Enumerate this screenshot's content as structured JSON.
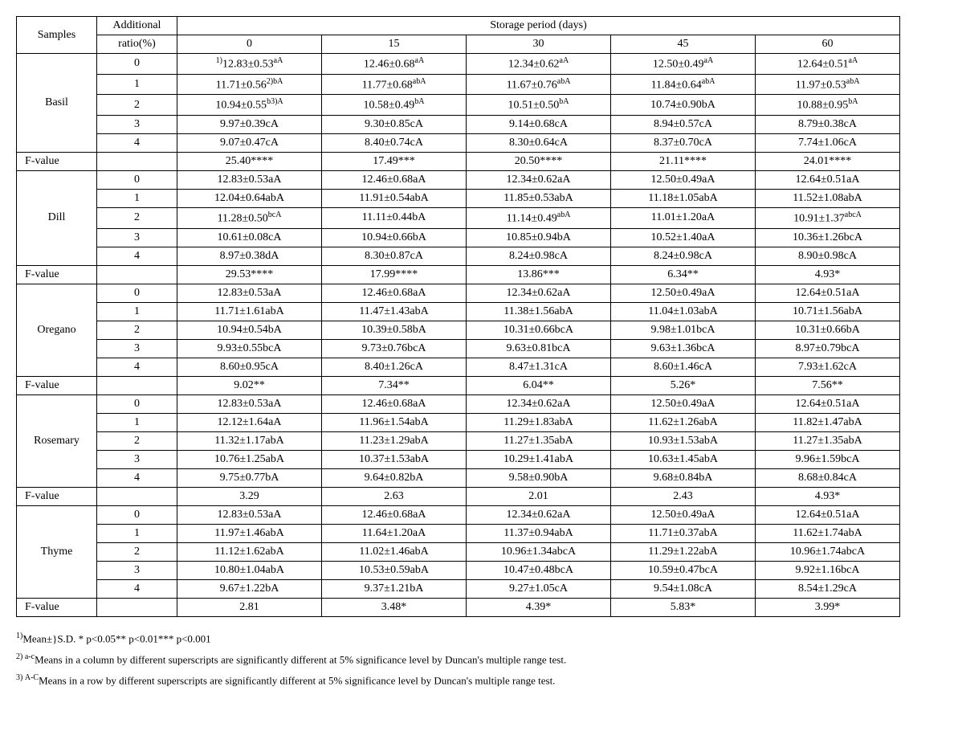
{
  "header": {
    "samples": "Samples",
    "ratio_line1": "Additional",
    "ratio_line2": "ratio(%)",
    "storage": "Storage period (days)",
    "days": [
      "0",
      "15",
      "30",
      "45",
      "60"
    ]
  },
  "groups": [
    {
      "name": "Basil",
      "rows": [
        {
          "ratio": "0",
          "c": [
            {
              "pre": "1)",
              "v": "12.83±0.53",
              "sup": "aA"
            },
            {
              "v": "12.46±0.68",
              "sup": "aA"
            },
            {
              "v": "12.34±0.62",
              "sup": "aA"
            },
            {
              "v": "12.50±0.49",
              "sup": "aA"
            },
            {
              "v": "12.64±0.51",
              "sup": "aA"
            }
          ]
        },
        {
          "ratio": "1",
          "c": [
            {
              "v": "11.71±0.56",
              "sup": "2)bA"
            },
            {
              "v": "11.77±0.68",
              "sup": "abA"
            },
            {
              "v": "11.67±0.76",
              "sup": "abA"
            },
            {
              "v": "11.84±0.64",
              "sup": "abA"
            },
            {
              "v": "11.97±0.53",
              "sup": "abA"
            }
          ]
        },
        {
          "ratio": "2",
          "c": [
            {
              "v": "10.94±0.55",
              "sup": "b3)A"
            },
            {
              "v": "10.58±0.49",
              "sup": "bA"
            },
            {
              "v": "10.51±0.50",
              "sup": "bA"
            },
            {
              "v": "10.74±0.90bA"
            },
            {
              "v": "10.88±0.95",
              "sup": "bA"
            }
          ]
        },
        {
          "ratio": "3",
          "c": [
            {
              "v": "9.97±0.39cA"
            },
            {
              "v": "9.30±0.85cA"
            },
            {
              "v": "9.14±0.68cA"
            },
            {
              "v": "8.94±0.57cA"
            },
            {
              "v": "8.79±0.38cA"
            }
          ]
        },
        {
          "ratio": "4",
          "c": [
            {
              "v": "9.07±0.47cA"
            },
            {
              "v": "8.40±0.74cA"
            },
            {
              "v": "8.30±0.64cA"
            },
            {
              "v": "8.37±0.70cA"
            },
            {
              "v": "7.74±1.06cA"
            }
          ]
        }
      ],
      "fvalue": [
        "25.40****",
        "17.49***",
        "20.50****",
        "21.11****",
        "24.01****"
      ]
    },
    {
      "name": "Dill",
      "rows": [
        {
          "ratio": "0",
          "c": [
            {
              "v": "12.83±0.53aA"
            },
            {
              "v": "12.46±0.68aA"
            },
            {
              "v": "12.34±0.62aA"
            },
            {
              "v": "12.50±0.49aA"
            },
            {
              "v": "12.64±0.51aA"
            }
          ]
        },
        {
          "ratio": "1",
          "c": [
            {
              "v": "12.04±0.64abA"
            },
            {
              "v": "11.91±0.54abA"
            },
            {
              "v": "11.85±0.53abA"
            },
            {
              "v": "11.18±1.05abA"
            },
            {
              "v": "11.52±1.08abA"
            }
          ]
        },
        {
          "ratio": "2",
          "c": [
            {
              "v": "11.28±0.50",
              "sup": "bcA"
            },
            {
              "v": "11.11±0.44bA"
            },
            {
              "v": "11.14±0.49",
              "sup": "abA"
            },
            {
              "v": "11.01±1.20aA"
            },
            {
              "v": "10.91±1.37",
              "sup": "abcA"
            }
          ]
        },
        {
          "ratio": "3",
          "c": [
            {
              "v": "10.61±0.08cA"
            },
            {
              "v": "10.94±0.66bA"
            },
            {
              "v": "10.85±0.94bA"
            },
            {
              "v": "10.52±1.40aA"
            },
            {
              "v": "10.36±1.26bcA"
            }
          ]
        },
        {
          "ratio": "4",
          "c": [
            {
              "v": "8.97±0.38dA"
            },
            {
              "v": "8.30±0.87cA"
            },
            {
              "v": "8.24±0.98cA"
            },
            {
              "v": "8.24±0.98cA"
            },
            {
              "v": "8.90±0.98cA"
            }
          ]
        }
      ],
      "fvalue": [
        "29.53****",
        "17.99****",
        "13.86***",
        "6.34**",
        "4.93*"
      ]
    },
    {
      "name": "Oregano",
      "rows": [
        {
          "ratio": "0",
          "c": [
            {
              "v": "12.83±0.53aA"
            },
            {
              "v": "12.46±0.68aA"
            },
            {
              "v": "12.34±0.62aA"
            },
            {
              "v": "12.50±0.49aA"
            },
            {
              "v": "12.64±0.51aA"
            }
          ]
        },
        {
          "ratio": "1",
          "c": [
            {
              "v": "11.71±1.61abA"
            },
            {
              "v": "11.47±1.43abA"
            },
            {
              "v": "11.38±1.56abA"
            },
            {
              "v": "11.04±1.03abA"
            },
            {
              "v": "10.71±1.56abA"
            }
          ]
        },
        {
          "ratio": "2",
          "c": [
            {
              "v": "10.94±0.54bA"
            },
            {
              "v": "10.39±0.58bA"
            },
            {
              "v": "10.31±0.66bcA"
            },
            {
              "v": "9.98±1.01bcA"
            },
            {
              "v": "10.31±0.66bA"
            }
          ]
        },
        {
          "ratio": "3",
          "c": [
            {
              "v": "9.93±0.55bcA"
            },
            {
              "v": "9.73±0.76bcA"
            },
            {
              "v": "9.63±0.81bcA"
            },
            {
              "v": "9.63±1.36bcA"
            },
            {
              "v": "8.97±0.79bcA"
            }
          ]
        },
        {
          "ratio": "4",
          "c": [
            {
              "v": "8.60±0.95cA"
            },
            {
              "v": "8.40±1.26cA"
            },
            {
              "v": "8.47±1.31cA"
            },
            {
              "v": "8.60±1.46cA"
            },
            {
              "v": "7.93±1.62cA"
            }
          ]
        }
      ],
      "fvalue": [
        "9.02**",
        "7.34**",
        "6.04**",
        "5.26*",
        "7.56**"
      ]
    },
    {
      "name": "Rosemary",
      "rows": [
        {
          "ratio": "0",
          "c": [
            {
              "v": "12.83±0.53aA"
            },
            {
              "v": "12.46±0.68aA"
            },
            {
              "v": "12.34±0.62aA"
            },
            {
              "v": "12.50±0.49aA"
            },
            {
              "v": "12.64±0.51aA"
            }
          ]
        },
        {
          "ratio": "1",
          "c": [
            {
              "v": "12.12±1.64aA"
            },
            {
              "v": "11.96±1.54abA"
            },
            {
              "v": "11.29±1.83abA"
            },
            {
              "v": "11.62±1.26abA"
            },
            {
              "v": "11.82±1.47abA"
            }
          ]
        },
        {
          "ratio": "2",
          "c": [
            {
              "v": "11.32±1.17abA"
            },
            {
              "v": "11.23±1.29abA"
            },
            {
              "v": "11.27±1.35abA"
            },
            {
              "v": "10.93±1.53abA"
            },
            {
              "v": "11.27±1.35abA"
            }
          ]
        },
        {
          "ratio": "3",
          "c": [
            {
              "v": "10.76±1.25abA"
            },
            {
              "v": "10.37±1.53abA"
            },
            {
              "v": "10.29±1.41abA"
            },
            {
              "v": "10.63±1.45abA"
            },
            {
              "v": "9.96±1.59bcA"
            }
          ]
        },
        {
          "ratio": "4",
          "c": [
            {
              "v": "9.75±0.77bA"
            },
            {
              "v": "9.64±0.82bA"
            },
            {
              "v": "9.58±0.90bA"
            },
            {
              "v": "9.68±0.84bA"
            },
            {
              "v": "8.68±0.84cA"
            }
          ]
        }
      ],
      "fvalue": [
        "3.29",
        "2.63",
        "2.01",
        "2.43",
        "4.93*"
      ]
    },
    {
      "name": "Thyme",
      "rows": [
        {
          "ratio": "0",
          "c": [
            {
              "v": "12.83±0.53aA"
            },
            {
              "v": "12.46±0.68aA"
            },
            {
              "v": "12.34±0.62aA"
            },
            {
              "v": "12.50±0.49aA"
            },
            {
              "v": "12.64±0.51aA"
            }
          ]
        },
        {
          "ratio": "1",
          "c": [
            {
              "v": "11.97±1.46abA"
            },
            {
              "v": "11.64±1.20aA"
            },
            {
              "v": "11.37±0.94abA"
            },
            {
              "v": "11.71±0.37abA"
            },
            {
              "v": "11.62±1.74abA"
            }
          ]
        },
        {
          "ratio": "2",
          "c": [
            {
              "v": "11.12±1.62abA"
            },
            {
              "v": "11.02±1.46abA"
            },
            {
              "v": "10.96±1.34abcA"
            },
            {
              "v": "11.29±1.22abA"
            },
            {
              "v": "10.96±1.74abcA"
            }
          ]
        },
        {
          "ratio": "3",
          "c": [
            {
              "v": "10.80±1.04abA"
            },
            {
              "v": "10.53±0.59abA"
            },
            {
              "v": "10.47±0.48bcA"
            },
            {
              "v": "10.59±0.47bcA"
            },
            {
              "v": "9.92±1.16bcA"
            }
          ]
        },
        {
          "ratio": "4",
          "c": [
            {
              "v": "9.67±1.22bA"
            },
            {
              "v": "9.37±1.21bA"
            },
            {
              "v": "9.27±1.05cA"
            },
            {
              "v": "9.54±1.08cA"
            },
            {
              "v": "8.54±1.29cA"
            }
          ]
        }
      ],
      "fvalue": [
        "2.81",
        "3.48*",
        "4.39*",
        "5.83*",
        "3.99*"
      ]
    }
  ],
  "fvalue_label": "F-value",
  "footnotes": {
    "f1_pre": "1)",
    "f1": "Mean±}S.D. * p<0.05** p<0.01*** p<0.001",
    "f2_pre": "2) ",
    "f2_sup": "a-c",
    "f2": "Means in a column by different superscripts are significantly different at 5% significance level by Duncan's multiple range test.",
    "f3_pre": "3) ",
    "f3_sup": "A-C",
    "f3": "Means in a row by different superscripts are significantly different at 5% significance level by Duncan's multiple range test."
  }
}
